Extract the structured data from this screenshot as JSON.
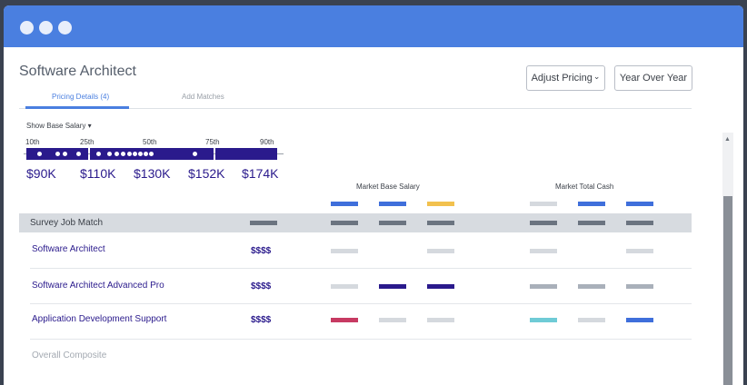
{
  "window": {
    "dots": [
      "",
      "",
      ""
    ]
  },
  "page": {
    "title": "Software Architect"
  },
  "toolbar": {
    "adjust_pricing_label": "Adjust Pricing",
    "adjust_pricing_chevron": "⌄",
    "year_over_year_label": "Year Over Year"
  },
  "tabs": [
    {
      "label": "Pricing Details (4)",
      "active": true
    },
    {
      "label": "Add Matches",
      "active": false
    }
  ],
  "range": {
    "show_label": "Show Base Salary",
    "caret": "▾",
    "percentiles": [
      "10th",
      "25th",
      "50th",
      "75th",
      "90th"
    ],
    "salaries": [
      "$90K",
      "$110K",
      "$130K",
      "$152K",
      "$174K"
    ],
    "accent_color": "#2a1a8c"
  },
  "groups": {
    "market_base": "Market Base Salary",
    "market_total": "Market Total Cash"
  },
  "colors": {
    "blue": "#3f6fdb",
    "yellow": "#f2c14e",
    "dark_gray": "#6b7480",
    "light_gray": "#d5d9de",
    "mid_gray": "#a9b0ba",
    "navy": "#2a1a8c",
    "red": "#c73a62",
    "teal": "#6fcbd6"
  },
  "table": {
    "header": "Survey Job Match",
    "rows": [
      {
        "job": "Software Architect",
        "price": "$$$$"
      },
      {
        "job": "Software Architect Advanced Pro",
        "price": "$$$$"
      },
      {
        "job": "Application Development Support",
        "price": "$$$$"
      }
    ],
    "composite": "Overall Composite"
  },
  "scrollbar": {
    "up_arrow": "▲"
  }
}
